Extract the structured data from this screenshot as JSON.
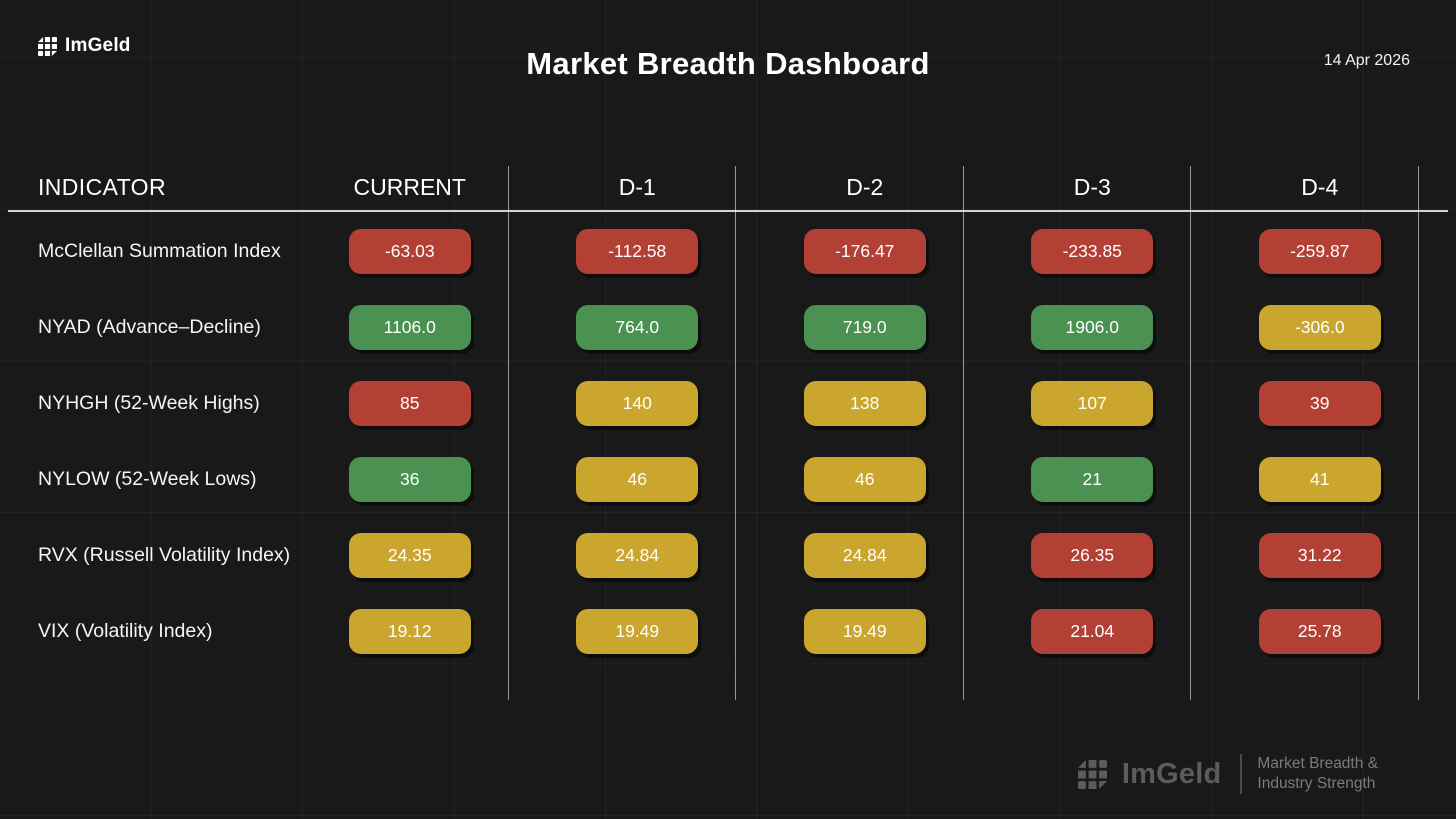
{
  "header": {
    "logo_text": "ImGeld",
    "title": "Market Breadth Dashboard",
    "date": "14 Apr 2026"
  },
  "chart_data": {
    "type": "table",
    "title": "Market Breadth Dashboard",
    "columns": [
      "INDICATOR",
      "CURRENT",
      "D-1",
      "D-2",
      "D-3",
      "D-4"
    ],
    "rows": [
      {
        "indicator": "McClellan Summation Index",
        "values": [
          "-63.03",
          "-112.58",
          "-176.47",
          "-233.85",
          "-259.87"
        ],
        "statuses": [
          "red",
          "red",
          "red",
          "red",
          "red"
        ]
      },
      {
        "indicator": "NYAD (Advance–Decline)",
        "values": [
          "1106.0",
          "764.0",
          "719.0",
          "1906.0",
          "-306.0"
        ],
        "statuses": [
          "green",
          "green",
          "green",
          "green",
          "yellow"
        ]
      },
      {
        "indicator": "NYHGH (52-Week Highs)",
        "values": [
          "85",
          "140",
          "138",
          "107",
          "39"
        ],
        "statuses": [
          "red",
          "yellow",
          "yellow",
          "yellow",
          "red"
        ]
      },
      {
        "indicator": "NYLOW (52-Week Lows)",
        "values": [
          "36",
          "46",
          "46",
          "21",
          "41"
        ],
        "statuses": [
          "green",
          "yellow",
          "yellow",
          "green",
          "yellow"
        ]
      },
      {
        "indicator": "RVX (Russell Volatility Index)",
        "values": [
          "24.35",
          "24.84",
          "24.84",
          "26.35",
          "31.22"
        ],
        "statuses": [
          "yellow",
          "yellow",
          "yellow",
          "red",
          "red"
        ]
      },
      {
        "indicator": "VIX (Volatility Index)",
        "values": [
          "19.12",
          "19.49",
          "19.49",
          "21.04",
          "25.78"
        ],
        "statuses": [
          "yellow",
          "yellow",
          "yellow",
          "red",
          "red"
        ]
      }
    ],
    "status_colors": {
      "red": "#b24035",
      "green": "#4a9152",
      "yellow": "#cba62f"
    }
  },
  "footer": {
    "logo_text": "ImGeld",
    "tagline_line1": "Market Breadth &",
    "tagline_line2": "Industry Strength"
  }
}
